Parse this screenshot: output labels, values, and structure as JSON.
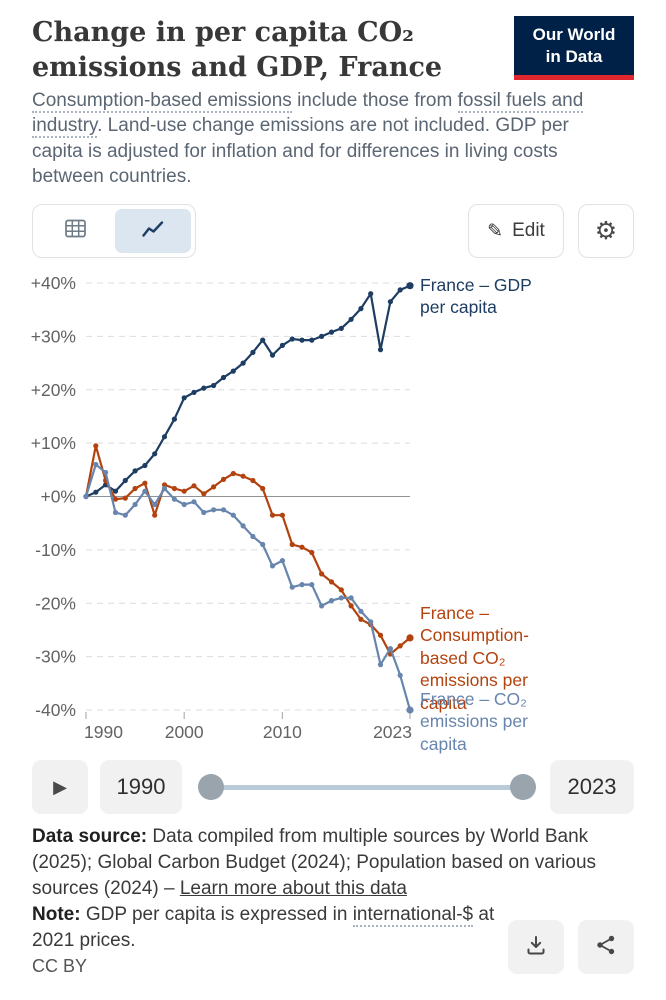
{
  "header": {
    "title": "Change in per capita CO₂ emissions and GDP, France",
    "logo": {
      "line1": "Our World",
      "line2": "in Data",
      "bg": "#002147",
      "accent": "#e0272e"
    },
    "subtitle_segments": [
      {
        "text": "Consumption-based emissions",
        "dotted": true
      },
      {
        "text": " include those from ",
        "dotted": false
      },
      {
        "text": "fossil fuels and industry",
        "dotted": true
      },
      {
        "text": ". Land-use change emissions are not included. GDP per capita is adjusted for inflation and for differences in living costs between countries.",
        "dotted": false
      }
    ]
  },
  "toolbar": {
    "edit_label": "Edit"
  },
  "chart_data": {
    "type": "line",
    "title": "Change in per capita CO₂ emissions and GDP, France",
    "xlabel": "",
    "ylabel": "",
    "grid": true,
    "legend_position": "end-of-line-labels",
    "ylim": [
      -40,
      40
    ],
    "x": [
      1990,
      1991,
      1992,
      1993,
      1994,
      1995,
      1996,
      1997,
      1998,
      1999,
      2000,
      2001,
      2002,
      2003,
      2004,
      2005,
      2006,
      2007,
      2008,
      2009,
      2010,
      2011,
      2012,
      2013,
      2014,
      2015,
      2016,
      2017,
      2018,
      2019,
      2020,
      2021,
      2022,
      2023
    ],
    "yticks": [
      {
        "value": 40,
        "label": "+40%"
      },
      {
        "value": 30,
        "label": "+30%"
      },
      {
        "value": 20,
        "label": "+20%"
      },
      {
        "value": 10,
        "label": "+10%"
      },
      {
        "value": 0,
        "label": "+0%"
      },
      {
        "value": -10,
        "label": "-10%"
      },
      {
        "value": -20,
        "label": "-20%"
      },
      {
        "value": -30,
        "label": "-30%"
      },
      {
        "value": -40,
        "label": "-40%"
      }
    ],
    "xticks": [
      {
        "value": 1990,
        "label": "1990"
      },
      {
        "value": 2000,
        "label": "2000"
      },
      {
        "value": 2010,
        "label": "2010"
      },
      {
        "value": 2023,
        "label": "2023"
      }
    ],
    "series": [
      {
        "name": "France – GDP per capita",
        "color": "#1d3d63",
        "values": [
          0,
          0.8,
          2.2,
          1.0,
          3.0,
          4.8,
          5.8,
          8.0,
          11.2,
          14.5,
          18.5,
          19.5,
          20.3,
          20.8,
          22.3,
          23.5,
          25.0,
          27.0,
          29.3,
          26.5,
          28.3,
          29.5,
          29.3,
          29.3,
          30.0,
          30.8,
          31.5,
          33.2,
          35.2,
          38.0,
          27.5,
          36.5,
          38.7,
          39.5
        ]
      },
      {
        "name": "France – Consumption-based CO₂ emissions per capita",
        "color": "#b2430f",
        "values": [
          0,
          9.5,
          3.0,
          -0.5,
          -0.3,
          1.5,
          2.5,
          -3.5,
          2.2,
          1.5,
          1.0,
          2.0,
          0.5,
          1.8,
          3.2,
          4.3,
          3.8,
          3.0,
          1.5,
          -3.5,
          -3.5,
          -9.0,
          -9.5,
          -10.5,
          -14.5,
          -16.0,
          -17.5,
          -20.5,
          -23.0,
          -24.0,
          -26.0,
          -29.5,
          -28.0,
          -26.5
        ]
      },
      {
        "name": "France – CO₂ emissions per capita",
        "color": "#6785ad",
        "values": [
          0,
          6.0,
          4.5,
          -3.0,
          -3.5,
          -1.5,
          1.0,
          -1.5,
          1.5,
          -0.5,
          -1.5,
          -1.0,
          -3.0,
          -2.5,
          -2.5,
          -3.5,
          -5.5,
          -7.5,
          -9.0,
          -13.0,
          -12.0,
          -17.0,
          -16.5,
          -16.5,
          -20.5,
          -19.5,
          -19.0,
          -19.0,
          -21.5,
          -23.5,
          -31.5,
          -28.5,
          -33.5,
          -40.0
        ]
      }
    ]
  },
  "timeline": {
    "play_icon": "▶",
    "start_label": "1990",
    "end_label": "2023"
  },
  "footer": {
    "source_label": "Data source:",
    "source_text": " Data compiled from multiple sources by World Bank (2025); Global Carbon Budget (2024); Population based on various sources (2024) – ",
    "source_link": "Learn more about this data",
    "note_label": "Note:",
    "note_text_pre": " GDP per capita is expressed in ",
    "note_dotted": "international-$",
    "note_text_post": " at 2021 prices.",
    "license": "CC BY"
  }
}
